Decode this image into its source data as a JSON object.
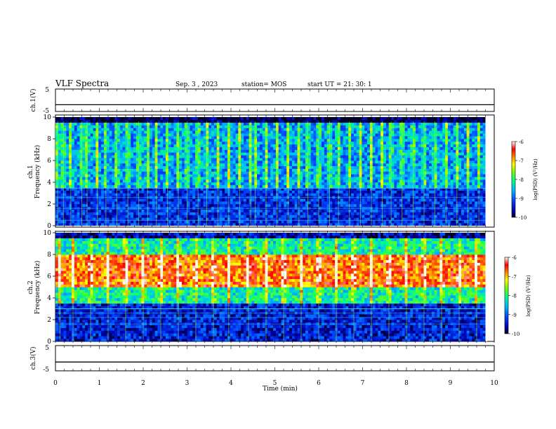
{
  "header": {
    "title": "VLF Spectra",
    "date": "Sep. 3 , 2023",
    "station": "station= MOS",
    "start_ut": "start UT = 21: 30: 1"
  },
  "chart_data": [
    {
      "type": "line",
      "panel": "ch1-voltage",
      "ylabel": "ch.1(V)",
      "ylim": [
        -5,
        5
      ],
      "yticks": [
        "5",
        "-5"
      ],
      "baseline_value": -2,
      "x": [
        0,
        10
      ],
      "values": [
        -2,
        -2
      ],
      "color": "#000000"
    },
    {
      "type": "heatmap",
      "panel": "ch1-spectrogram",
      "ylabel": "ch.1\nFrequency (kHz)",
      "ylim": [
        0,
        10
      ],
      "yticks": [
        "10",
        "8",
        "6",
        "4",
        "2",
        "0"
      ],
      "xlim": [
        0,
        9.8
      ],
      "colorbar": {
        "label": "log(PSD) (V²/Hz)",
        "range": [
          -10,
          -6
        ],
        "ticks": [
          "-6",
          "-7",
          "-8",
          "-9",
          "-10"
        ]
      },
      "description_layers": [
        {
          "freq_range_khz": [
            0,
            3.5
          ],
          "level": -9.3
        },
        {
          "freq_range_khz": [
            3.5,
            9.5
          ],
          "level": -8.7
        },
        {
          "freq_range_khz": [
            9.5,
            10
          ],
          "level": -10
        }
      ],
      "tones_khz": [
        3.45,
        2.6,
        1.6,
        0.5
      ],
      "bursts_min": [
        0.05,
        0.18,
        0.35,
        0.6,
        0.72,
        0.95,
        1.15,
        1.4,
        1.65,
        1.9,
        2.1,
        2.3,
        2.55,
        2.8,
        3.0,
        3.25,
        3.45,
        3.7,
        3.95,
        4.2,
        4.45,
        4.55,
        4.8,
        5.05,
        5.3,
        5.55,
        5.75,
        6.0,
        6.25,
        6.45,
        6.7,
        6.95,
        7.2,
        7.45,
        7.65,
        7.9,
        8.15,
        8.4,
        8.65,
        8.9,
        9.15,
        9.4,
        9.65
      ]
    },
    {
      "type": "heatmap",
      "panel": "ch2-spectrogram",
      "ylabel": "ch.2\nFrequency (kHz)",
      "ylim": [
        0,
        10
      ],
      "yticks": [
        "10",
        "8",
        "6",
        "4",
        "2",
        "0"
      ],
      "xlim": [
        0,
        9.8
      ],
      "colorbar": {
        "label": "log(PSD) (V²/Hz)",
        "range": [
          -10,
          -6
        ],
        "ticks": [
          "-6",
          "-7",
          "-8",
          "-9",
          "-10"
        ]
      },
      "description_layers": [
        {
          "freq_range_khz": [
            0,
            3.5
          ],
          "level": -9.4
        },
        {
          "freq_range_khz": [
            3.5,
            5
          ],
          "level": -8.2
        },
        {
          "freq_range_khz": [
            5,
            8
          ],
          "level": -6.7
        },
        {
          "freq_range_khz": [
            8,
            9.5
          ],
          "level": -8.2
        },
        {
          "freq_range_khz": [
            9.5,
            10
          ],
          "level": -9.6
        }
      ],
      "tones_khz": [
        3.0,
        2.6,
        2.2,
        1.6
      ],
      "bursts_min": [
        0.1,
        0.4,
        0.8,
        1.2,
        1.6,
        2.0,
        2.4,
        2.8,
        3.2,
        3.6,
        3.95,
        4.4,
        4.8,
        5.2,
        5.6,
        6.0,
        6.4,
        6.8,
        7.2,
        7.6,
        8.0,
        8.4,
        8.8,
        9.2,
        9.6
      ]
    },
    {
      "type": "line",
      "panel": "ch3-voltage",
      "ylabel": "ch.3(V)",
      "ylim": [
        -5,
        5
      ],
      "yticks": [
        "5",
        "-5"
      ],
      "x": [
        0,
        10
      ],
      "values": [
        -1.5,
        -1.5
      ],
      "color": "#000000"
    }
  ],
  "x_axis": {
    "label": "Time (min)",
    "range": [
      0,
      10
    ],
    "ticks": [
      "0",
      "1",
      "2",
      "3",
      "4",
      "5",
      "6",
      "7",
      "8",
      "9",
      "10"
    ]
  },
  "colors": {
    "background_low": "#000000",
    "scale": [
      "#000033",
      "#0000aa",
      "#0055ff",
      "#00ccff",
      "#00ff66",
      "#aaff00",
      "#ffff00",
      "#ff8800",
      "#ff0000",
      "#ffcccc"
    ]
  }
}
